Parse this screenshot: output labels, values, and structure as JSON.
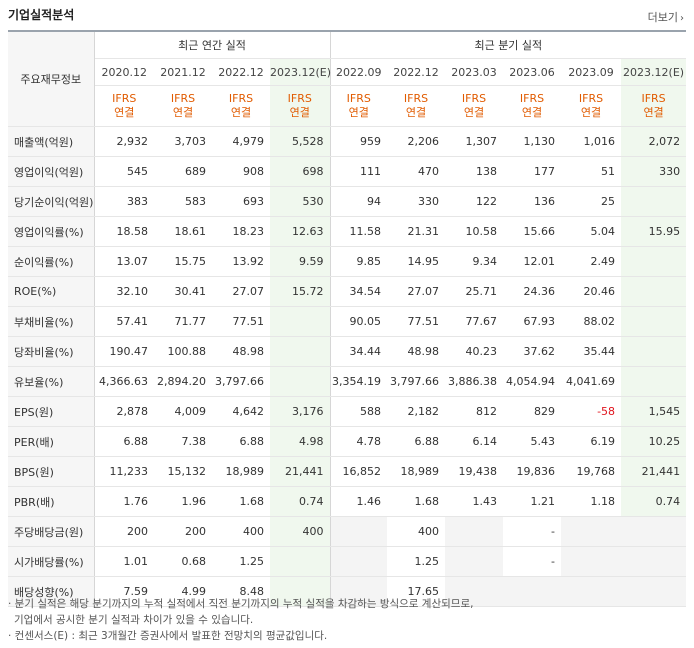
{
  "title": "기업실적분석",
  "more_label": "더보기",
  "header": {
    "label": "주요재무정보",
    "group_annual": "최근 연간 실적",
    "group_quarterly": "최근 분기 실적",
    "annual_periods": [
      "2020.12",
      "2021.12",
      "2022.12",
      "2023.12(E)"
    ],
    "quarterly_periods": [
      "2022.09",
      "2022.12",
      "2023.03",
      "2023.06",
      "2023.09",
      "2023.12(E)"
    ],
    "basis_top": "IFRS",
    "basis_bottom": "연결"
  },
  "rows": [
    {
      "label": "매출액(억원)",
      "values": [
        "2,932",
        "3,703",
        "4,979",
        "5,528",
        "959",
        "2,206",
        "1,307",
        "1,130",
        "1,016",
        "2,072"
      ]
    },
    {
      "label": "영업이익(억원)",
      "values": [
        "545",
        "689",
        "908",
        "698",
        "111",
        "470",
        "138",
        "177",
        "51",
        "330"
      ]
    },
    {
      "label": "당기순이익(억원)",
      "values": [
        "383",
        "583",
        "693",
        "530",
        "94",
        "330",
        "122",
        "136",
        "25",
        ""
      ]
    },
    {
      "label": "영업이익률(%)",
      "values": [
        "18.58",
        "18.61",
        "18.23",
        "12.63",
        "11.58",
        "21.31",
        "10.58",
        "15.66",
        "5.04",
        "15.95"
      ]
    },
    {
      "label": "순이익률(%)",
      "values": [
        "13.07",
        "15.75",
        "13.92",
        "9.59",
        "9.85",
        "14.95",
        "9.34",
        "12.01",
        "2.49",
        ""
      ]
    },
    {
      "label": "ROE(%)",
      "values": [
        "32.10",
        "30.41",
        "27.07",
        "15.72",
        "34.54",
        "27.07",
        "25.71",
        "24.36",
        "20.46",
        ""
      ]
    },
    {
      "label": "부채비율(%)",
      "values": [
        "57.41",
        "71.77",
        "77.51",
        "",
        "90.05",
        "77.51",
        "77.67",
        "67.93",
        "88.02",
        ""
      ]
    },
    {
      "label": "당좌비율(%)",
      "values": [
        "190.47",
        "100.88",
        "48.98",
        "",
        "34.44",
        "48.98",
        "40.23",
        "37.62",
        "35.44",
        ""
      ]
    },
    {
      "label": "유보율(%)",
      "values": [
        "4,366.63",
        "2,894.20",
        "3,797.66",
        "",
        "3,354.19",
        "3,797.66",
        "3,886.38",
        "4,054.94",
        "4,041.69",
        ""
      ]
    },
    {
      "label": "EPS(원)",
      "values": [
        "2,878",
        "4,009",
        "4,642",
        "3,176",
        "588",
        "2,182",
        "812",
        "829",
        "-58",
        "1,545"
      ]
    },
    {
      "label": "PER(배)",
      "values": [
        "6.88",
        "7.38",
        "6.88",
        "4.98",
        "4.78",
        "6.88",
        "6.14",
        "5.43",
        "6.19",
        "10.25"
      ]
    },
    {
      "label": "BPS(원)",
      "values": [
        "11,233",
        "15,132",
        "18,989",
        "21,441",
        "16,852",
        "18,989",
        "19,438",
        "19,836",
        "19,768",
        "21,441"
      ]
    },
    {
      "label": "PBR(배)",
      "values": [
        "1.76",
        "1.96",
        "1.68",
        "0.74",
        "1.46",
        "1.68",
        "1.43",
        "1.21",
        "1.18",
        "0.74"
      ]
    },
    {
      "label": "주당배당금(원)",
      "values": [
        "200",
        "200",
        "400",
        "400",
        "",
        "400",
        "",
        "-",
        "",
        ""
      ]
    },
    {
      "label": "시가배당률(%)",
      "values": [
        "1.01",
        "0.68",
        "1.25",
        "",
        "",
        "1.25",
        "",
        "-",
        "",
        ""
      ]
    },
    {
      "label": "배당성향(%)",
      "values": [
        "7.59",
        "4.99",
        "8.48",
        "",
        "",
        "17.65",
        "",
        "",
        "",
        ""
      ]
    }
  ],
  "notes": [
    "· 분기 실적은 해당 분기까지의 누적 실적에서 직전 분기까지의 누적 실적을 차감하는 방식으로 계산되므로,",
    "  기업에서 공시한 분기 실적과 차이가 있을 수 있습니다.",
    "· 컨센서스(E) : 최근 3개월간 증권사에서 발표한 전망치의 평균값입니다."
  ]
}
